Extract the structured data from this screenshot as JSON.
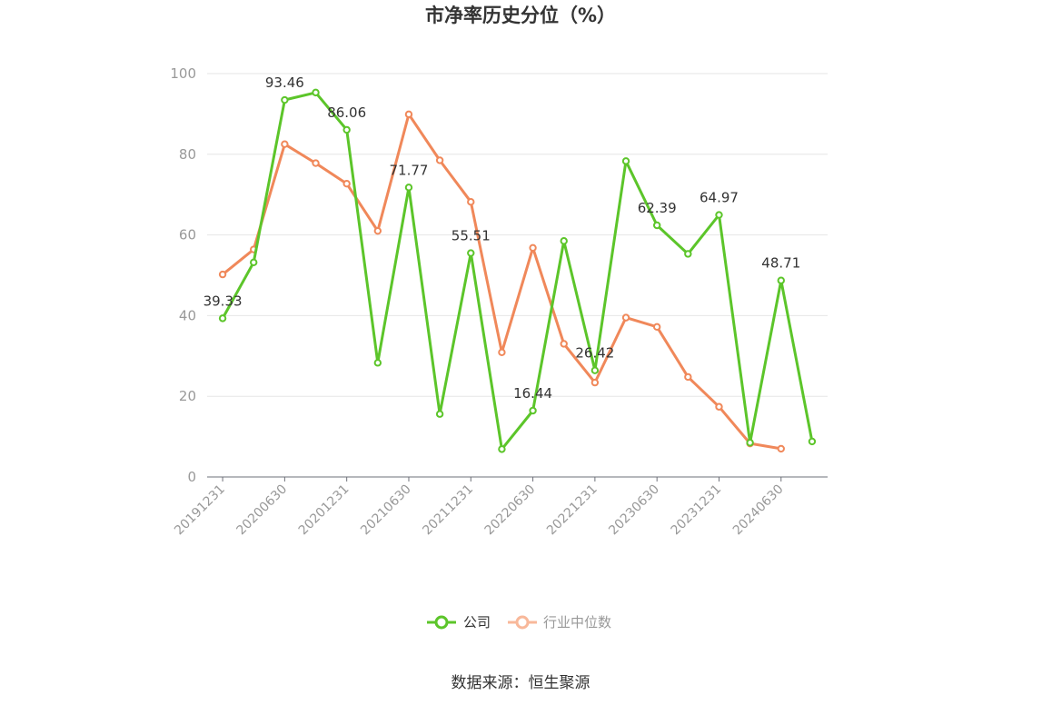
{
  "chart_data": {
    "type": "line",
    "title": "市净率历史分位（%）",
    "x": [
      "20191231",
      "20200331",
      "20200630",
      "20200930",
      "20201231",
      "20210331",
      "20210630",
      "20210930",
      "20211231",
      "20220331",
      "20220630",
      "20220930",
      "20221231",
      "20230331",
      "20230630",
      "20230930",
      "20231231",
      "20240331",
      "20240630",
      "20240930"
    ],
    "x_tick_labels": [
      "20191231",
      "20200630",
      "20201231",
      "20210630",
      "20211231",
      "20220630",
      "20221231",
      "20230630",
      "20231231",
      "20240630"
    ],
    "ylim": [
      0,
      100
    ],
    "yticks": [
      0,
      20,
      40,
      60,
      80,
      100
    ],
    "grid": true,
    "legend_position": "bottom",
    "series": [
      {
        "name": "公司",
        "color": "#5cc52a",
        "values": [
          39.33,
          53.2,
          93.46,
          95.3,
          86.06,
          28.3,
          71.77,
          15.6,
          55.51,
          6.9,
          16.44,
          58.5,
          26.42,
          78.3,
          62.39,
          55.3,
          64.97,
          8.5,
          48.71,
          8.8
        ],
        "labels": [
          "39.33",
          null,
          "93.46",
          null,
          "86.06",
          null,
          "71.77",
          null,
          "55.51",
          null,
          "16.44",
          null,
          "26.42",
          null,
          "62.39",
          null,
          "64.97",
          null,
          "48.71",
          null
        ]
      },
      {
        "name": "行业中位数",
        "color": "#f0885a",
        "values": [
          50.2,
          56.4,
          82.5,
          77.8,
          72.7,
          61.0,
          89.9,
          78.5,
          68.2,
          30.9,
          56.8,
          33.0,
          23.4,
          39.5,
          37.2,
          24.8,
          17.4,
          8.3,
          7.0,
          null
        ]
      }
    ],
    "source": "数据来源：恒生聚源"
  }
}
